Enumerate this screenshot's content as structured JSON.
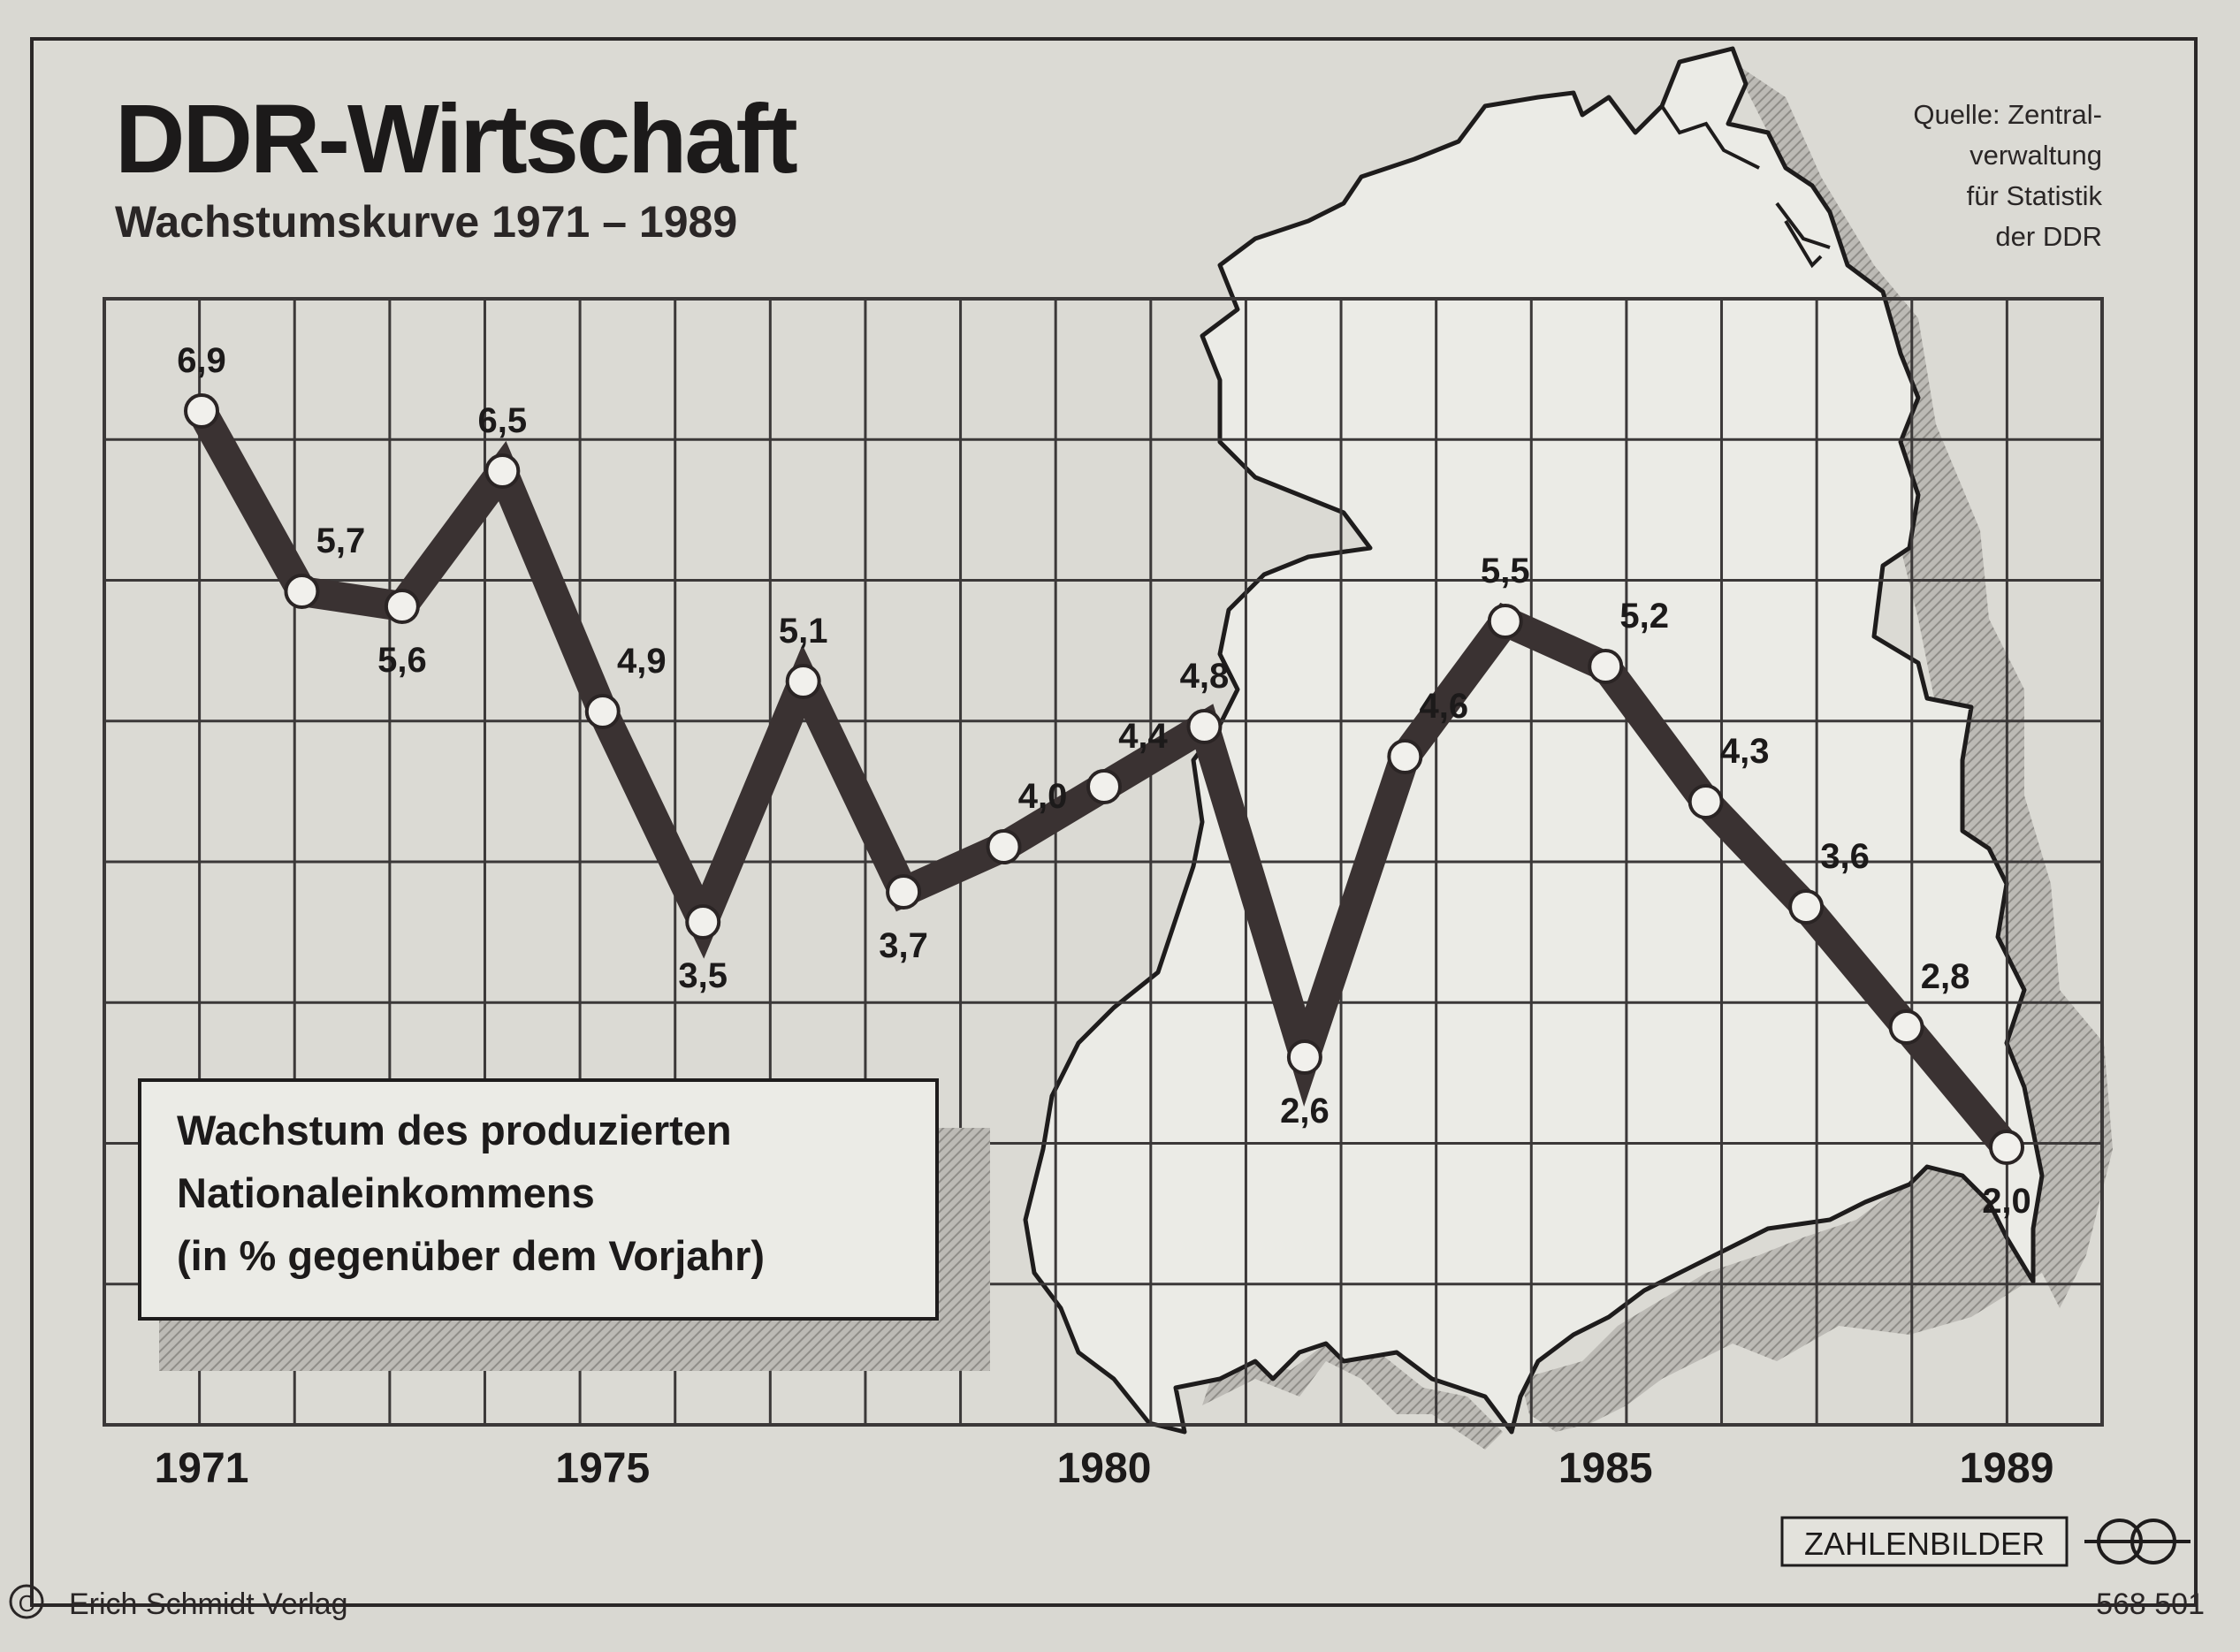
{
  "header": {
    "title": "DDR-Wirtschaft",
    "subtitle": "Wachstumskurve 1971 – 1989"
  },
  "source": {
    "lines": [
      "Quelle: Zentral-",
      "verwaltung",
      "für Statistik",
      "der DDR"
    ]
  },
  "legend": {
    "lines": [
      "Wachstum des produzierten",
      "Nationaleinkommens",
      "(in % gegenüber dem Vorjahr)"
    ]
  },
  "chart_data": {
    "type": "line",
    "title": "DDR-Wirtschaft",
    "subtitle": "Wachstumskurve 1971 – 1989",
    "xlabel": "",
    "ylabel": "",
    "x": [
      1971,
      1972,
      1973,
      1974,
      1975,
      1976,
      1977,
      1978,
      1979,
      1980,
      1981,
      1982,
      1983,
      1984,
      1985,
      1986,
      1987,
      1988,
      1989
    ],
    "x_tick_labels": [
      "1971",
      "1975",
      "1980",
      "1985",
      "1989"
    ],
    "series": [
      {
        "values": [
          6.9,
          5.7,
          5.6,
          6.5,
          4.9,
          3.5,
          5.1,
          3.7,
          4.0,
          4.4,
          4.8,
          2.6,
          4.6,
          5.5,
          5.2,
          4.3,
          3.6,
          2.8,
          2.0
        ],
        "labels": [
          "6,9",
          "5,7",
          "5,6",
          "6,5",
          "4,9",
          "3,5",
          "5,1",
          "3,7",
          "4,0",
          "4,4",
          "4,8",
          "2,6",
          "4,6",
          "5,5",
          "5,2",
          "4,3",
          "3,6",
          "2,8",
          "2,0"
        ],
        "color": "#3a3232"
      }
    ],
    "grid": true,
    "legend_position": "bottom-left",
    "background_map": "DDR outline"
  },
  "footer": {
    "brand": "ZAHLENBILDER",
    "publisher": "Erich Schmidt Verlag",
    "copyright_symbol": "C",
    "code": "568 501"
  },
  "colors": {
    "background": "#d9d8d2",
    "ink": "#1c1a1a",
    "line": "#3a3232",
    "map_fill": "#ebebe6",
    "shadow": "#a7a5a0"
  }
}
